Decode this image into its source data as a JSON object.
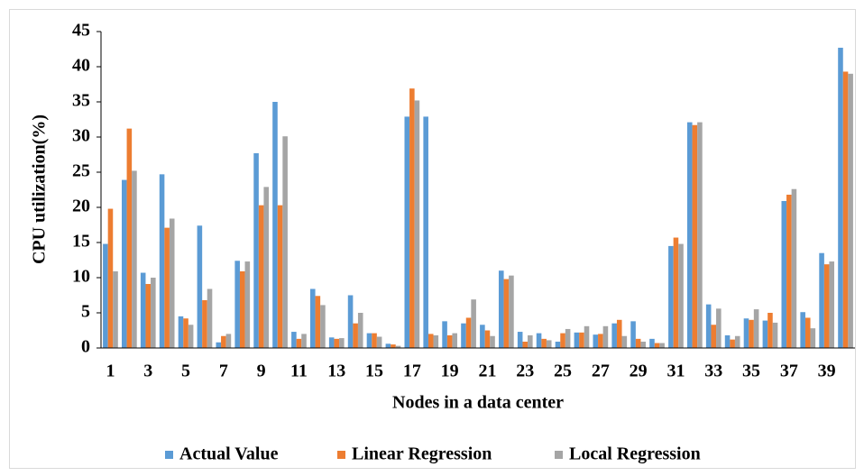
{
  "chart_data": {
    "type": "bar",
    "x_label": "Nodes in a data center",
    "y_label": "CPU utilization(%)",
    "categories": [
      "1",
      null,
      "3",
      null,
      "5",
      null,
      "7",
      null,
      "9",
      null,
      "11",
      null,
      "13",
      null,
      "15",
      null,
      "17",
      null,
      "19",
      null,
      "21",
      null,
      "23",
      null,
      "25",
      null,
      "27",
      null,
      "29",
      null,
      "31",
      null,
      "33",
      null,
      "35",
      null,
      "37",
      null,
      "39",
      null
    ],
    "series": [
      {
        "name": "Actual Value",
        "color": "#5b9bd5",
        "values": [
          14.8,
          23.9,
          10.7,
          24.7,
          4.5,
          17.4,
          0.8,
          12.4,
          27.7,
          35.0,
          2.3,
          8.4,
          1.5,
          7.5,
          2.1,
          0.6,
          32.9,
          32.9,
          3.8,
          3.5,
          3.3,
          11.0,
          2.3,
          2.1,
          0.9,
          2.2,
          1.9,
          3.5,
          3.8,
          1.3,
          14.5,
          32.1,
          6.2,
          1.8,
          4.2,
          3.9,
          20.9,
          5.1,
          13.5,
          42.7
        ]
      },
      {
        "name": "Linear Regression",
        "color": "#ed7d31",
        "values": [
          19.8,
          31.2,
          9.1,
          17.1,
          4.2,
          6.8,
          1.7,
          10.9,
          20.3,
          20.3,
          1.3,
          7.4,
          1.3,
          3.5,
          2.1,
          0.5,
          36.9,
          2.0,
          1.8,
          4.3,
          2.5,
          9.8,
          0.9,
          1.3,
          2.1,
          2.2,
          2.0,
          4.0,
          1.3,
          0.7,
          15.7,
          31.7,
          3.3,
          1.2,
          4.0,
          5.0,
          21.8,
          4.3,
          11.9,
          39.3
        ]
      },
      {
        "name": "Local Regression",
        "color": "#a5a5a5",
        "values": [
          10.9,
          25.2,
          10.0,
          18.4,
          3.3,
          8.4,
          2.0,
          12.3,
          22.9,
          30.1,
          2.0,
          6.1,
          1.4,
          5.0,
          1.6,
          0.3,
          35.2,
          1.8,
          2.1,
          6.9,
          1.7,
          10.3,
          1.8,
          1.1,
          2.7,
          3.1,
          3.1,
          1.7,
          0.9,
          0.7,
          14.8,
          32.1,
          5.6,
          1.7,
          5.5,
          3.6,
          22.6,
          2.8,
          12.3,
          39.0
        ]
      }
    ],
    "ylim": [
      0,
      45
    ],
    "yticks": [
      0,
      5,
      10,
      15,
      20,
      25,
      30,
      35,
      40,
      45
    ],
    "grid": false,
    "legend": "bottom"
  }
}
